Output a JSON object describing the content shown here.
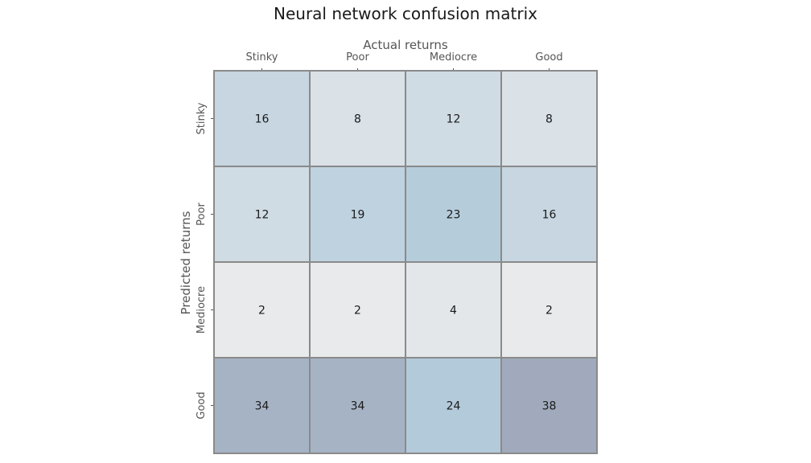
{
  "chart_data": {
    "type": "heatmap",
    "title": "Neural network confusion matrix",
    "xlabel": "Actual returns",
    "ylabel": "Predicted returns",
    "x_categories": [
      "Stinky",
      "Poor",
      "Mediocre",
      "Good"
    ],
    "y_categories": [
      "Stinky",
      "Poor",
      "Mediocre",
      "Good"
    ],
    "values": [
      [
        16,
        8,
        12,
        8
      ],
      [
        12,
        19,
        23,
        16
      ],
      [
        2,
        2,
        4,
        2
      ],
      [
        34,
        34,
        24,
        38
      ]
    ],
    "colors": {
      "cell_border": "#8a8a8a",
      "tick": "#555555",
      "low": "#e9eaec",
      "mid": "#b4cbdb",
      "high": "#a0aabc"
    },
    "x_axis_position": "top",
    "colorbar": false,
    "grid": false
  }
}
